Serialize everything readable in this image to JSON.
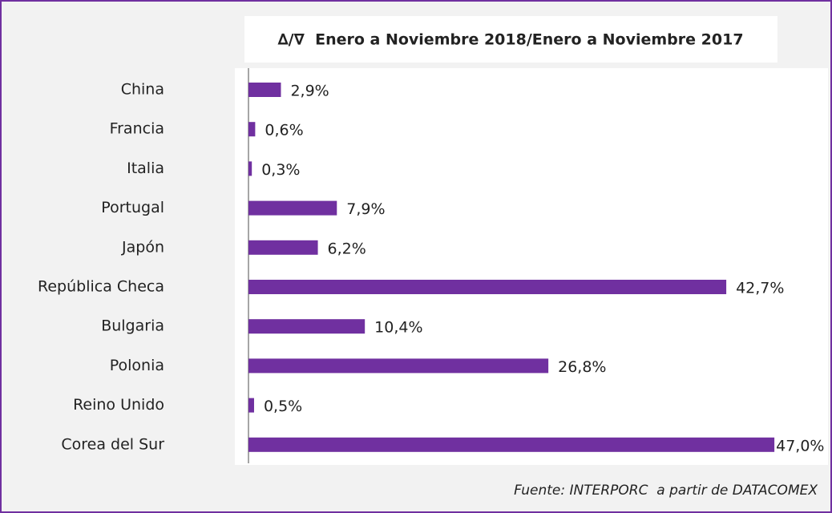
{
  "chart_data": {
    "type": "hbar",
    "title": "∆/∇  Enero a Noviembre 2018/Enero a Noviembre 2017",
    "source": "Fuente: INTERPORC  a partir de DATACOMEX",
    "categories": [
      "China",
      "Francia",
      "Italia",
      "Portugal",
      "Japón",
      "República Checa",
      "Bulgaria",
      "Polonia",
      "Reino Unido",
      "Corea del Sur"
    ],
    "values": [
      2.9,
      0.6,
      0.3,
      7.9,
      6.2,
      42.7,
      10.4,
      26.8,
      0.5,
      47.0
    ],
    "value_labels": [
      "2,9%",
      "0,6%",
      "0,3%",
      "7,9%",
      "6,2%",
      "42,7%",
      "10,4%",
      "26,8%",
      "0,5%",
      "47,0%"
    ],
    "color": "#7030a0"
  }
}
